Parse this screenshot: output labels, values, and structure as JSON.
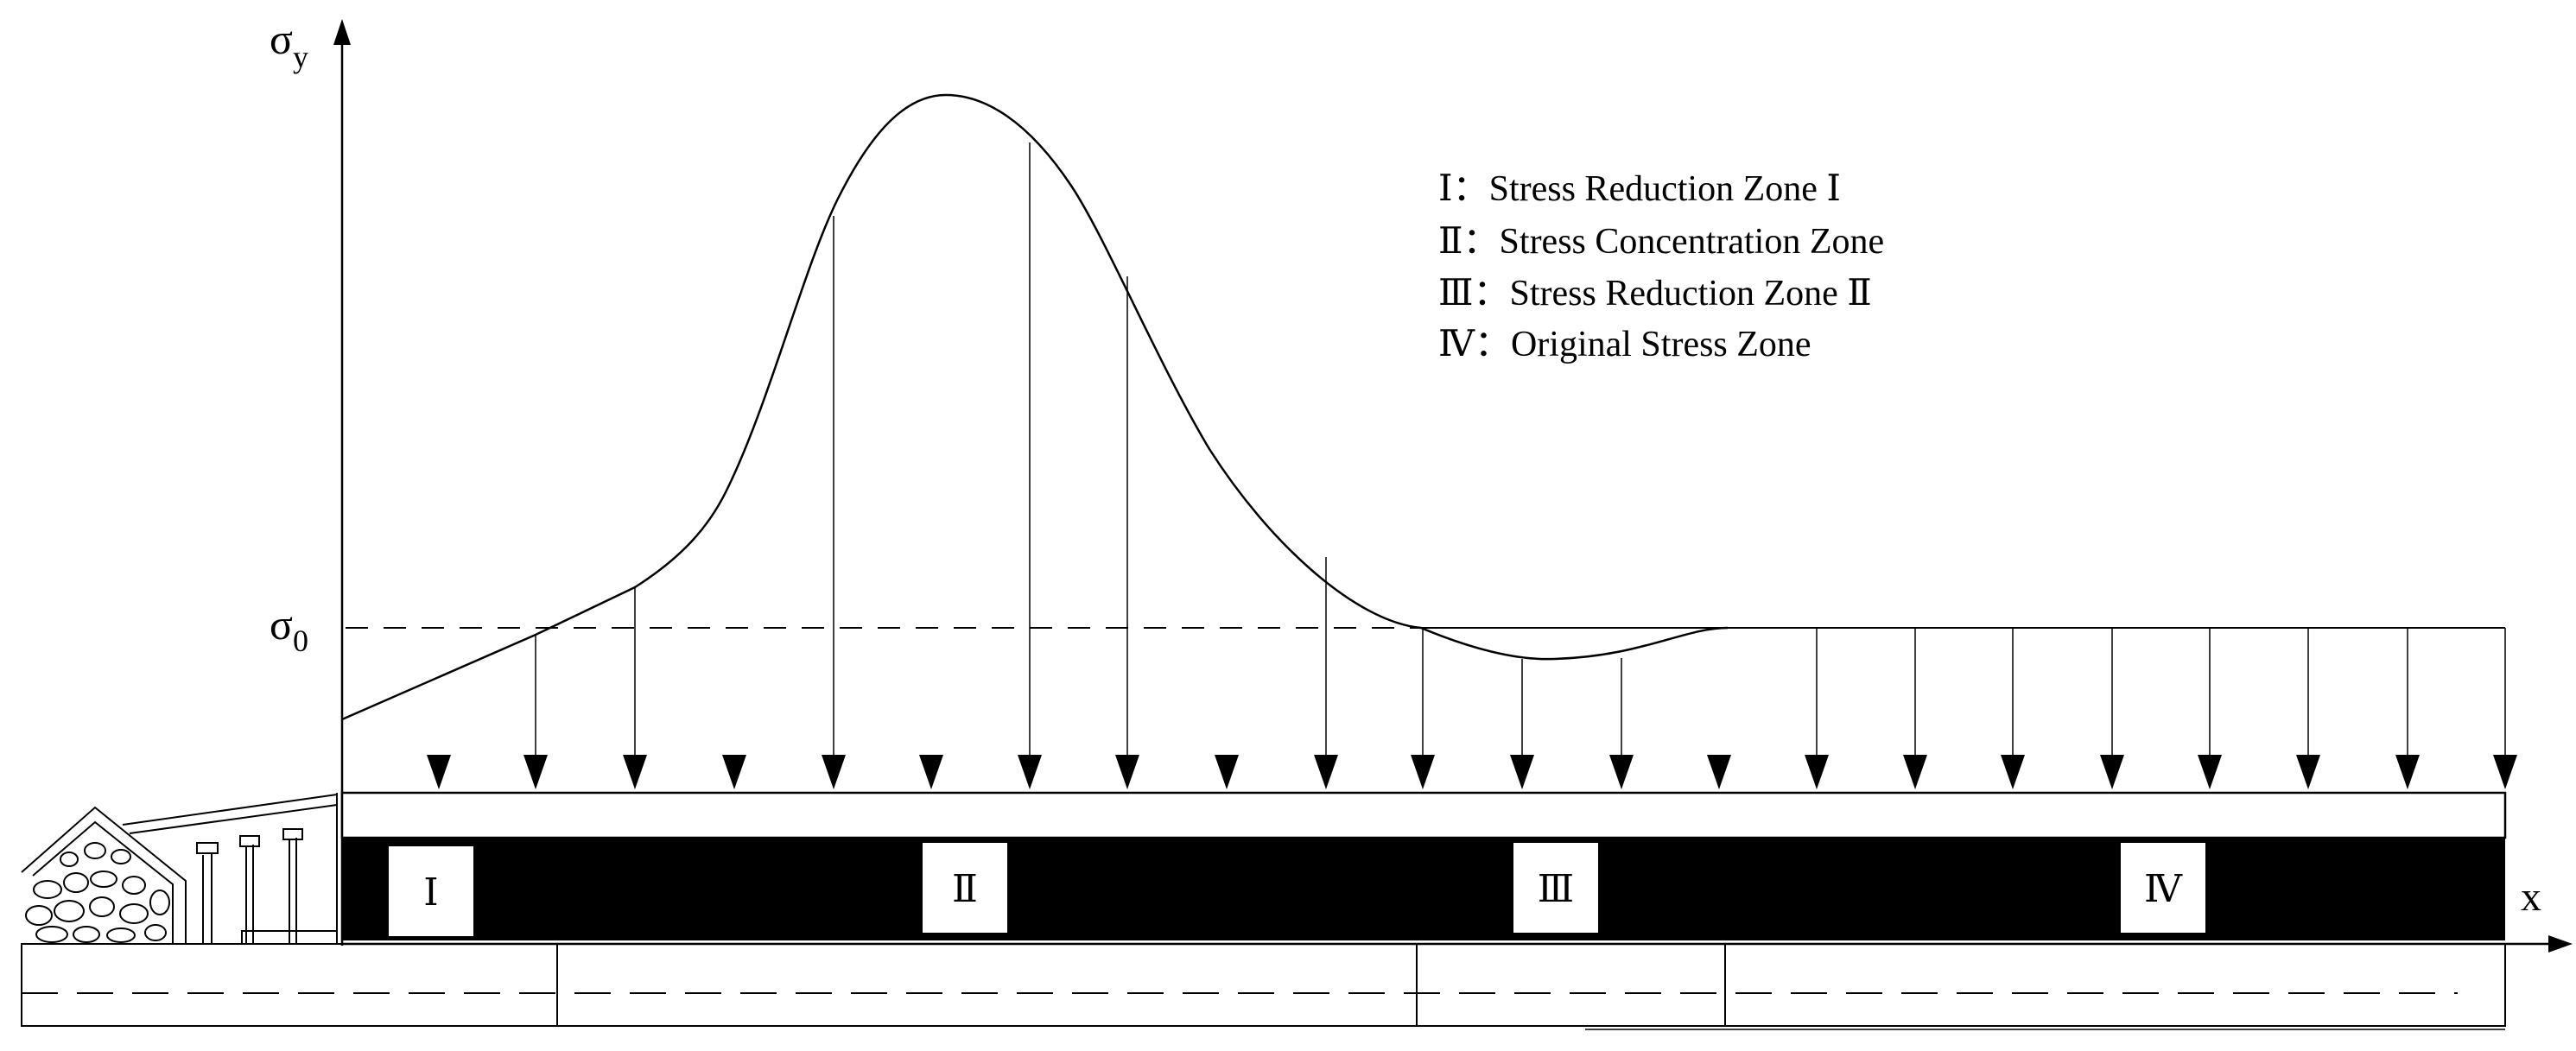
{
  "axis": {
    "y_label_main": "σ",
    "y_label_sub": "y",
    "ref_label_main": "σ",
    "ref_label_sub": "0",
    "x_label": "x"
  },
  "legend": [
    "Ⅰ：Stress Reduction Zone Ⅰ",
    "Ⅱ：Stress Concentration Zone",
    "Ⅲ：Stress Reduction Zone Ⅱ",
    "Ⅳ：Original  Stress Zone"
  ],
  "zones": [
    "Ⅰ",
    "Ⅱ",
    "Ⅲ",
    "Ⅳ"
  ],
  "colors": {
    "ink": "#000000",
    "background": "#ffffff",
    "coal_seam": "#000000"
  }
}
